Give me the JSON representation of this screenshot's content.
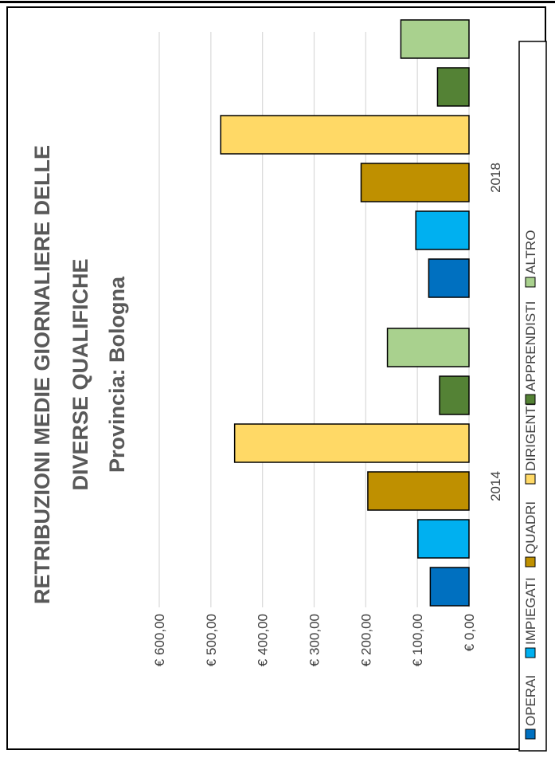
{
  "chart_data": {
    "type": "bar",
    "orientation": "vertical-rotated-page",
    "title_lines": [
      "RETRIBUZIONI MEDIE GIORNALIERE DELLE",
      "DIVERSE QUALIFICHE"
    ],
    "subtitle": "Provincia: Bologna",
    "categories": [
      "2014",
      "2018"
    ],
    "y_ticks": [
      "€ 0,00",
      "€ 100,00",
      "€ 200,00",
      "€ 300,00",
      "€ 400,00",
      "€ 500,00",
      "€ 600,00"
    ],
    "ylim": [
      0,
      600
    ],
    "grid": true,
    "legend_position": "bottom",
    "series": [
      {
        "name": "OPERAI",
        "color": "#0070C0",
        "values": [
          75,
          78
        ]
      },
      {
        "name": "IMPIEGATI",
        "color": "#00B0F0",
        "values": [
          99,
          103
        ]
      },
      {
        "name": "QUADRI",
        "color": "#BF9000",
        "values": [
          196,
          209
        ]
      },
      {
        "name": "DIRIGENTI",
        "color": "#FFD966",
        "values": [
          454,
          481
        ]
      },
      {
        "name": "APPRENDISTI",
        "color": "#548235",
        "values": [
          57,
          61
        ]
      },
      {
        "name": "ALTRO",
        "color": "#A9D18E",
        "values": [
          158,
          132
        ]
      }
    ]
  }
}
